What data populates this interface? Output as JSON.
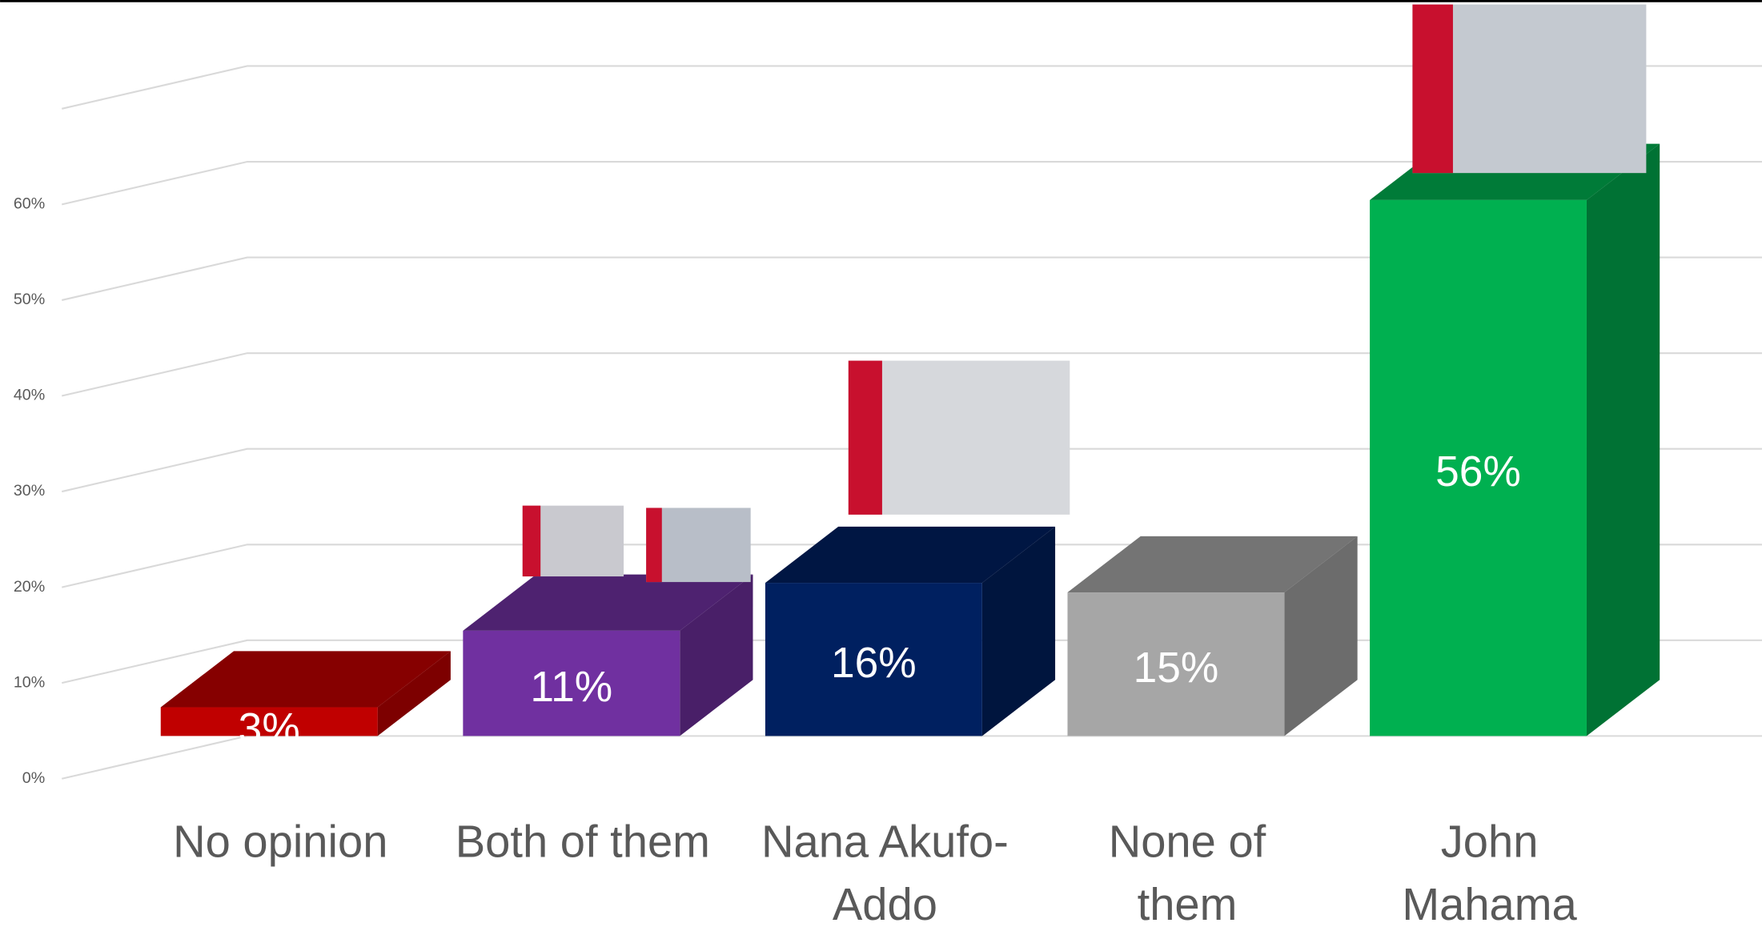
{
  "chart_data": {
    "type": "bar3d",
    "categories": [
      "No opinion",
      "Both of them",
      "Nana Akufo-Addo",
      "None of them",
      "John Mahama"
    ],
    "values": [
      3,
      11,
      16,
      15,
      56
    ],
    "value_labels": [
      "3%",
      "11%",
      "16%",
      "15%",
      "56%"
    ],
    "colors": [
      "#c00000",
      "#7030a0",
      "#002060",
      "#a6a6a6",
      "#00b050"
    ],
    "ylim": [
      0,
      70
    ],
    "yticks": [
      {
        "value": 0,
        "label": "0%"
      },
      {
        "value": 10,
        "label": "10%"
      },
      {
        "value": 20,
        "label": "20%"
      },
      {
        "value": 30,
        "label": "30%"
      },
      {
        "value": 40,
        "label": "40%"
      },
      {
        "value": 50,
        "label": "50%"
      },
      {
        "value": 60,
        "label": "60%"
      },
      {
        "value": 70,
        "label": ""
      }
    ],
    "grid": true
  }
}
